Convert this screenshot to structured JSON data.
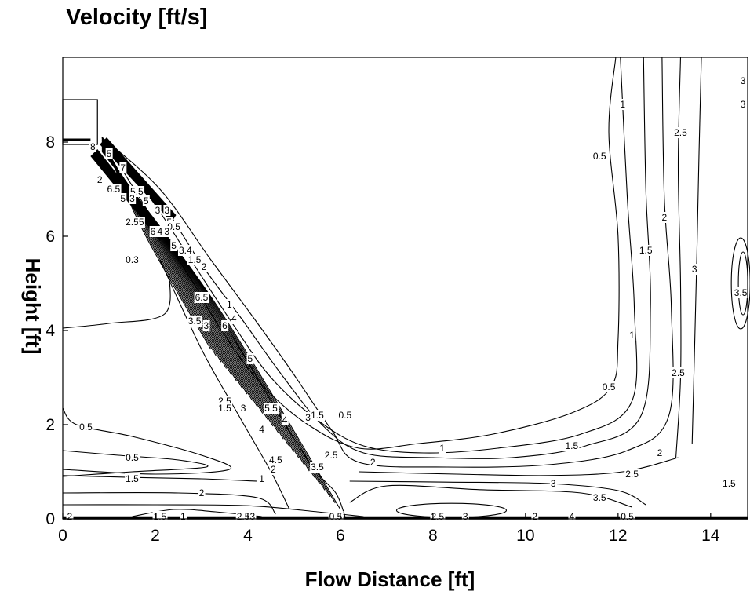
{
  "chart_data": {
    "type": "contour",
    "title": "Velocity [ft/s]",
    "xlabel": "Flow Distance [ft]",
    "ylabel": "Height [ft]",
    "xlim": [
      0,
      14.8
    ],
    "ylim": [
      0,
      9.8
    ],
    "xticks": [
      0,
      2,
      4,
      6,
      8,
      10,
      12,
      14
    ],
    "yticks": [
      0,
      2,
      4,
      6,
      8
    ],
    "grid": false,
    "contours": [
      {
        "level": "0.5",
        "points": [
          [
            0.85,
            8.1
          ],
          [
            1.8,
            6.6
          ],
          [
            2.7,
            5.2
          ],
          [
            3.5,
            3.9
          ],
          [
            4.3,
            2.85
          ],
          [
            5.3,
            2.0
          ],
          [
            6.4,
            1.5
          ],
          [
            7.7,
            1.6
          ],
          [
            9.3,
            1.8
          ],
          [
            11.0,
            2.25
          ],
          [
            11.85,
            2.8
          ],
          [
            12.0,
            3.8
          ],
          [
            12.0,
            6.0
          ],
          [
            11.8,
            8.2
          ],
          [
            11.95,
            9.8
          ]
        ],
        "labels": [
          {
            "text": "0.5",
            "x": 6.1,
            "y": 2.2
          },
          {
            "text": "0.5",
            "x": 11.8,
            "y": 2.8
          },
          {
            "text": "0.5",
            "x": 11.6,
            "y": 7.7
          }
        ]
      },
      {
        "level": "1",
        "points": [
          [
            0.85,
            8.1
          ],
          [
            1.9,
            6.8
          ],
          [
            2.9,
            5.3
          ],
          [
            3.7,
            4.1
          ],
          [
            4.5,
            3.0
          ],
          [
            5.5,
            2.1
          ],
          [
            6.5,
            1.55
          ],
          [
            7.8,
            1.4
          ],
          [
            9.4,
            1.5
          ],
          [
            11.2,
            1.8
          ],
          [
            12.3,
            2.5
          ],
          [
            12.35,
            4.5
          ],
          [
            12.2,
            6.8
          ],
          [
            12.05,
            9.8
          ]
        ],
        "labels": [
          {
            "text": "1",
            "x": 8.2,
            "y": 1.5
          },
          {
            "text": "1",
            "x": 12.3,
            "y": 3.9
          },
          {
            "text": "1",
            "x": 12.1,
            "y": 8.8
          }
        ]
      },
      {
        "level": "1.5",
        "points": [
          [
            0.85,
            8.1
          ],
          [
            2.0,
            6.9
          ],
          [
            3.0,
            5.4
          ],
          [
            3.9,
            4.2
          ],
          [
            4.7,
            3.1
          ],
          [
            5.6,
            2.0
          ],
          [
            6.5,
            1.4
          ],
          [
            8.0,
            1.3
          ],
          [
            9.7,
            1.3
          ],
          [
            11.3,
            1.55
          ],
          [
            12.5,
            2.2
          ],
          [
            12.7,
            4.5
          ],
          [
            12.6,
            7.0
          ],
          [
            12.55,
            9.8
          ]
        ],
        "labels": [
          {
            "text": "1.5",
            "x": 5.5,
            "y": 2.2
          },
          {
            "text": "1.5",
            "x": 11.0,
            "y": 1.55
          },
          {
            "text": "1.5",
            "x": 12.6,
            "y": 5.7
          }
        ]
      },
      {
        "level": "2",
        "points": [
          [
            0.85,
            8.1
          ],
          [
            2.1,
            7.0
          ],
          [
            3.2,
            5.5
          ],
          [
            4.1,
            4.3
          ],
          [
            4.9,
            3.2
          ],
          [
            5.8,
            1.9
          ],
          [
            6.4,
            1.2
          ],
          [
            8.3,
            1.1
          ],
          [
            10.5,
            1.15
          ],
          [
            12.2,
            1.45
          ],
          [
            13.1,
            2.2
          ],
          [
            13.15,
            4.5
          ],
          [
            13.0,
            6.8
          ],
          [
            12.95,
            9.8
          ]
        ],
        "labels": [
          {
            "text": "2",
            "x": 6.7,
            "y": 1.2
          },
          {
            "text": "2",
            "x": 12.9,
            "y": 1.4
          },
          {
            "text": "2",
            "x": 13.0,
            "y": 6.4
          }
        ]
      },
      {
        "level": "2.5",
        "points": [
          [
            13.25,
            1.3
          ],
          [
            13.35,
            3.0
          ],
          [
            13.35,
            5.0
          ],
          [
            13.3,
            7.5
          ],
          [
            13.35,
            9.8
          ]
        ],
        "labels": [
          {
            "text": "2.5",
            "x": 13.3,
            "y": 3.1
          },
          {
            "text": "2.5",
            "x": 13.35,
            "y": 8.2
          }
        ]
      },
      {
        "level": "3",
        "points": [
          [
            13.6,
            1.6
          ],
          [
            13.65,
            3.5
          ],
          [
            13.7,
            5.5
          ],
          [
            13.75,
            7.8
          ],
          [
            13.8,
            9.8
          ]
        ],
        "labels": [
          {
            "text": "3",
            "x": 13.65,
            "y": 5.3
          }
        ]
      },
      {
        "level": "2.5",
        "points": [
          [
            6.4,
            1.0
          ],
          [
            8.5,
            0.95
          ],
          [
            10.5,
            0.92
          ],
          [
            12.1,
            1.0
          ],
          [
            13.3,
            1.3
          ]
        ],
        "labels": [
          {
            "text": "2.5",
            "x": 12.3,
            "y": 0.95
          }
        ]
      },
      {
        "level": "3",
        "points": [
          [
            6.2,
            0.8
          ],
          [
            8.3,
            0.78
          ],
          [
            10.5,
            0.75
          ],
          [
            12.0,
            0.6
          ],
          [
            12.6,
            0.3
          ]
        ],
        "labels": [
          {
            "text": "3",
            "x": 10.6,
            "y": 0.75
          }
        ]
      },
      {
        "level": "3.5",
        "points": [
          [
            6.2,
            0.35
          ],
          [
            7.0,
            0.7
          ],
          [
            9.0,
            0.62
          ],
          [
            11.2,
            0.55
          ],
          [
            12.3,
            0.25
          ]
        ],
        "labels": [
          {
            "text": "3.5",
            "x": 11.6,
            "y": 0.45
          }
        ]
      },
      {
        "level": "0.5",
        "points": [
          [
            0.0,
            2.35
          ],
          [
            0.3,
            2.0
          ],
          [
            1.5,
            1.75
          ],
          [
            3.0,
            1.35
          ],
          [
            3.6,
            1.05
          ],
          [
            2.0,
            0.95
          ],
          [
            0.0,
            1.05
          ]
        ],
        "labels": [
          {
            "text": "0.5",
            "x": 0.5,
            "y": 1.95
          }
        ]
      },
      {
        "level": "0.5",
        "points": [
          [
            0.0,
            1.45
          ],
          [
            1.2,
            1.35
          ],
          [
            2.5,
            1.25
          ],
          [
            3.1,
            1.1
          ],
          [
            1.5,
            1.0
          ],
          [
            0.0,
            0.9
          ]
        ],
        "labels": [
          {
            "text": "0.5",
            "x": 1.5,
            "y": 1.3
          }
        ]
      },
      {
        "level": "1.5",
        "points": [
          [
            0.0,
            0.92
          ],
          [
            1.5,
            0.88
          ],
          [
            3.0,
            0.85
          ],
          [
            4.2,
            0.8
          ]
        ],
        "labels": [
          {
            "text": "1.5",
            "x": 1.5,
            "y": 0.85
          }
        ]
      },
      {
        "level": "2",
        "points": [
          [
            0.0,
            0.55
          ],
          [
            2.5,
            0.55
          ],
          [
            4.2,
            0.45
          ],
          [
            4.6,
            0.1
          ]
        ],
        "labels": [
          {
            "text": "2",
            "x": 3.0,
            "y": 0.55
          }
        ]
      },
      {
        "level": "1.5",
        "points": [
          [
            1.5,
            0.05
          ],
          [
            2.4,
            0.2
          ],
          [
            3.3,
            0.15
          ],
          [
            4.3,
            0.05
          ]
        ],
        "labels": [
          {
            "text": "1.5",
            "x": 2.1,
            "y": 0.05
          }
        ]
      },
      {
        "level": "4",
        "points": [
          [
            3.6,
            4.0
          ],
          [
            4.5,
            2.5
          ],
          [
            5.4,
            1.1
          ],
          [
            5.9,
            0.55
          ],
          [
            6.1,
            0.05
          ]
        ],
        "labels": [
          {
            "text": "4",
            "x": 4.8,
            "y": 2.1
          }
        ]
      },
      {
        "level": "3",
        "points": [
          [
            2.1,
            5.5
          ],
          [
            3.0,
            3.6
          ],
          [
            3.8,
            2.2
          ],
          [
            4.5,
            1.0
          ],
          [
            4.9,
            0.2
          ]
        ],
        "labels": [
          {
            "text": "3",
            "x": 3.1,
            "y": 4.1
          }
        ]
      },
      {
        "level": "1",
        "points": [
          [
            0.0,
            4.05
          ],
          [
            1.0,
            4.15
          ],
          [
            2.2,
            4.35
          ],
          [
            2.3,
            5.2
          ]
        ],
        "labels": []
      },
      {
        "level": "0.5",
        "points": [
          [
            0.0,
            0.3
          ],
          [
            2.0,
            0.3
          ],
          [
            4.0,
            0.28
          ],
          [
            5.5,
            0.15
          ],
          [
            6.5,
            0.05
          ]
        ],
        "labels": [
          {
            "text": "0.5",
            "x": 5.9,
            "y": 0.05
          },
          {
            "text": "0.5",
            "x": 12.2,
            "y": 0.05
          }
        ]
      }
    ],
    "bottom_labels": [
      {
        "text": "2",
        "x": 0.15,
        "y": 0.05
      },
      {
        "text": "1",
        "x": 2.6,
        "y": 0.05
      },
      {
        "text": "2.5",
        "x": 3.9,
        "y": 0.05
      },
      {
        "text": "3",
        "x": 4.1,
        "y": 0.05
      },
      {
        "text": "2.5",
        "x": 8.1,
        "y": 0.05
      },
      {
        "text": "3",
        "x": 8.7,
        "y": 0.05
      },
      {
        "text": "2",
        "x": 10.2,
        "y": 0.05
      },
      {
        "text": "4",
        "x": 11.0,
        "y": 0.05
      }
    ],
    "jet_labels": [
      {
        "text": "5",
        "x": 1.0,
        "y": 7.75
      },
      {
        "text": "7",
        "x": 1.3,
        "y": 7.45
      },
      {
        "text": "5.5",
        "x": 1.6,
        "y": 6.95
      },
      {
        "text": "5",
        "x": 1.8,
        "y": 6.75
      },
      {
        "text": "3",
        "x": 2.05,
        "y": 6.55
      },
      {
        "text": "3",
        "x": 2.25,
        "y": 6.55
      },
      {
        "text": "5",
        "x": 2.3,
        "y": 6.3
      },
      {
        "text": "0.5",
        "x": 2.4,
        "y": 6.2
      },
      {
        "text": "8",
        "x": 0.65,
        "y": 7.9
      },
      {
        "text": "2",
        "x": 0.8,
        "y": 7.2
      },
      {
        "text": "6.5",
        "x": 1.1,
        "y": 7.0
      },
      {
        "text": "5",
        "x": 1.3,
        "y": 6.8
      },
      {
        "text": "3",
        "x": 1.5,
        "y": 6.8
      },
      {
        "text": "2.5",
        "x": 1.5,
        "y": 6.3
      },
      {
        "text": "5",
        "x": 1.7,
        "y": 6.3
      },
      {
        "text": "6",
        "x": 1.95,
        "y": 6.1
      },
      {
        "text": "4",
        "x": 2.1,
        "y": 6.1
      },
      {
        "text": "3",
        "x": 2.25,
        "y": 6.1
      },
      {
        "text": "0.3",
        "x": 1.5,
        "y": 5.5
      },
      {
        "text": "5",
        "x": 2.4,
        "y": 5.8
      },
      {
        "text": "3.4",
        "x": 2.65,
        "y": 5.7
      },
      {
        "text": "1.5",
        "x": 2.85,
        "y": 5.5
      },
      {
        "text": "2",
        "x": 3.05,
        "y": 5.35
      },
      {
        "text": "6.5",
        "x": 3.0,
        "y": 4.7
      },
      {
        "text": "1",
        "x": 3.6,
        "y": 4.55
      },
      {
        "text": "4",
        "x": 3.7,
        "y": 4.25
      },
      {
        "text": "6",
        "x": 3.5,
        "y": 4.1
      },
      {
        "text": "3.5",
        "x": 2.85,
        "y": 4.2
      },
      {
        "text": "5",
        "x": 4.05,
        "y": 3.4
      },
      {
        "text": "5.5",
        "x": 4.5,
        "y": 2.35
      },
      {
        "text": "2.5",
        "x": 3.5,
        "y": 2.5
      },
      {
        "text": "1.5",
        "x": 3.5,
        "y": 2.35
      },
      {
        "text": "3",
        "x": 3.9,
        "y": 2.35
      },
      {
        "text": "4",
        "x": 4.3,
        "y": 1.9
      },
      {
        "text": "4.5",
        "x": 4.6,
        "y": 1.25
      },
      {
        "text": "3",
        "x": 5.3,
        "y": 2.15
      },
      {
        "text": "1",
        "x": 4.3,
        "y": 0.85
      },
      {
        "text": "2",
        "x": 4.55,
        "y": 1.05
      },
      {
        "text": "2.5",
        "x": 5.8,
        "y": 1.35
      },
      {
        "text": "3.5",
        "x": 5.5,
        "y": 1.1
      }
    ],
    "right_labels": [
      {
        "text": "3",
        "x": 14.7,
        "y": 9.3
      },
      {
        "text": "3",
        "x": 14.7,
        "y": 8.8
      },
      {
        "text": "3.5",
        "x": 14.65,
        "y": 4.8
      },
      {
        "text": "1.5",
        "x": 14.4,
        "y": 0.75
      }
    ]
  }
}
